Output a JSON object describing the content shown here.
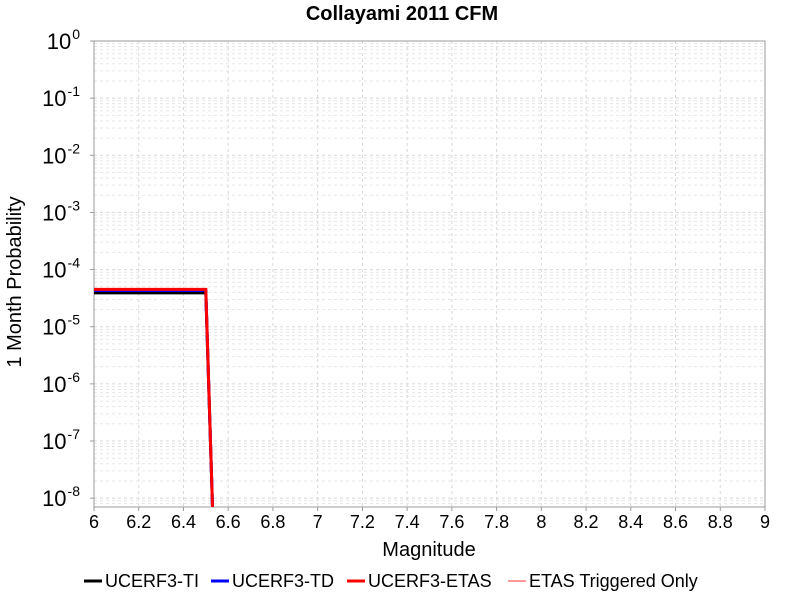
{
  "chart_data": {
    "type": "line",
    "title": "Collayami 2011 CFM",
    "xlabel": "Magnitude",
    "ylabel": "1 Month Probability",
    "xlim": [
      6,
      9
    ],
    "ylim": [
      7e-09,
      1
    ],
    "yscale": "log",
    "grid": true,
    "legend_position": "bottom",
    "x_ticks": [
      "6",
      "6.2",
      "6.4",
      "6.6",
      "6.8",
      "7",
      "7.2",
      "7.4",
      "7.6",
      "7.8",
      "8",
      "8.2",
      "8.4",
      "8.6",
      "8.8",
      "9"
    ],
    "y_ticks": [
      {
        "base": "10",
        "exp": "0"
      },
      {
        "base": "10",
        "exp": "-1"
      },
      {
        "base": "10",
        "exp": "-2"
      },
      {
        "base": "10",
        "exp": "-3"
      },
      {
        "base": "10",
        "exp": "-4"
      },
      {
        "base": "10",
        "exp": "-5"
      },
      {
        "base": "10",
        "exp": "-6"
      },
      {
        "base": "10",
        "exp": "-7"
      },
      {
        "base": "10",
        "exp": "-8"
      }
    ],
    "series": [
      {
        "name": "UCERF3-TI",
        "color": "#000000",
        "x": [
          6.0,
          6.5,
          6.53
        ],
        "y": [
          3.9e-05,
          3.9e-05,
          7e-09
        ]
      },
      {
        "name": "UCERF3-TD",
        "color": "#0000ff",
        "x": [
          6.0,
          6.5,
          6.53
        ],
        "y": [
          4.3e-05,
          4.3e-05,
          7e-09
        ]
      },
      {
        "name": "UCERF3-ETAS",
        "color": "#ff0000",
        "x": [
          6.0,
          6.5,
          6.53
        ],
        "y": [
          4.5e-05,
          4.5e-05,
          7e-09
        ]
      },
      {
        "name": "ETAS Triggered Only",
        "color": "#ff9999",
        "x": [],
        "y": []
      }
    ]
  }
}
